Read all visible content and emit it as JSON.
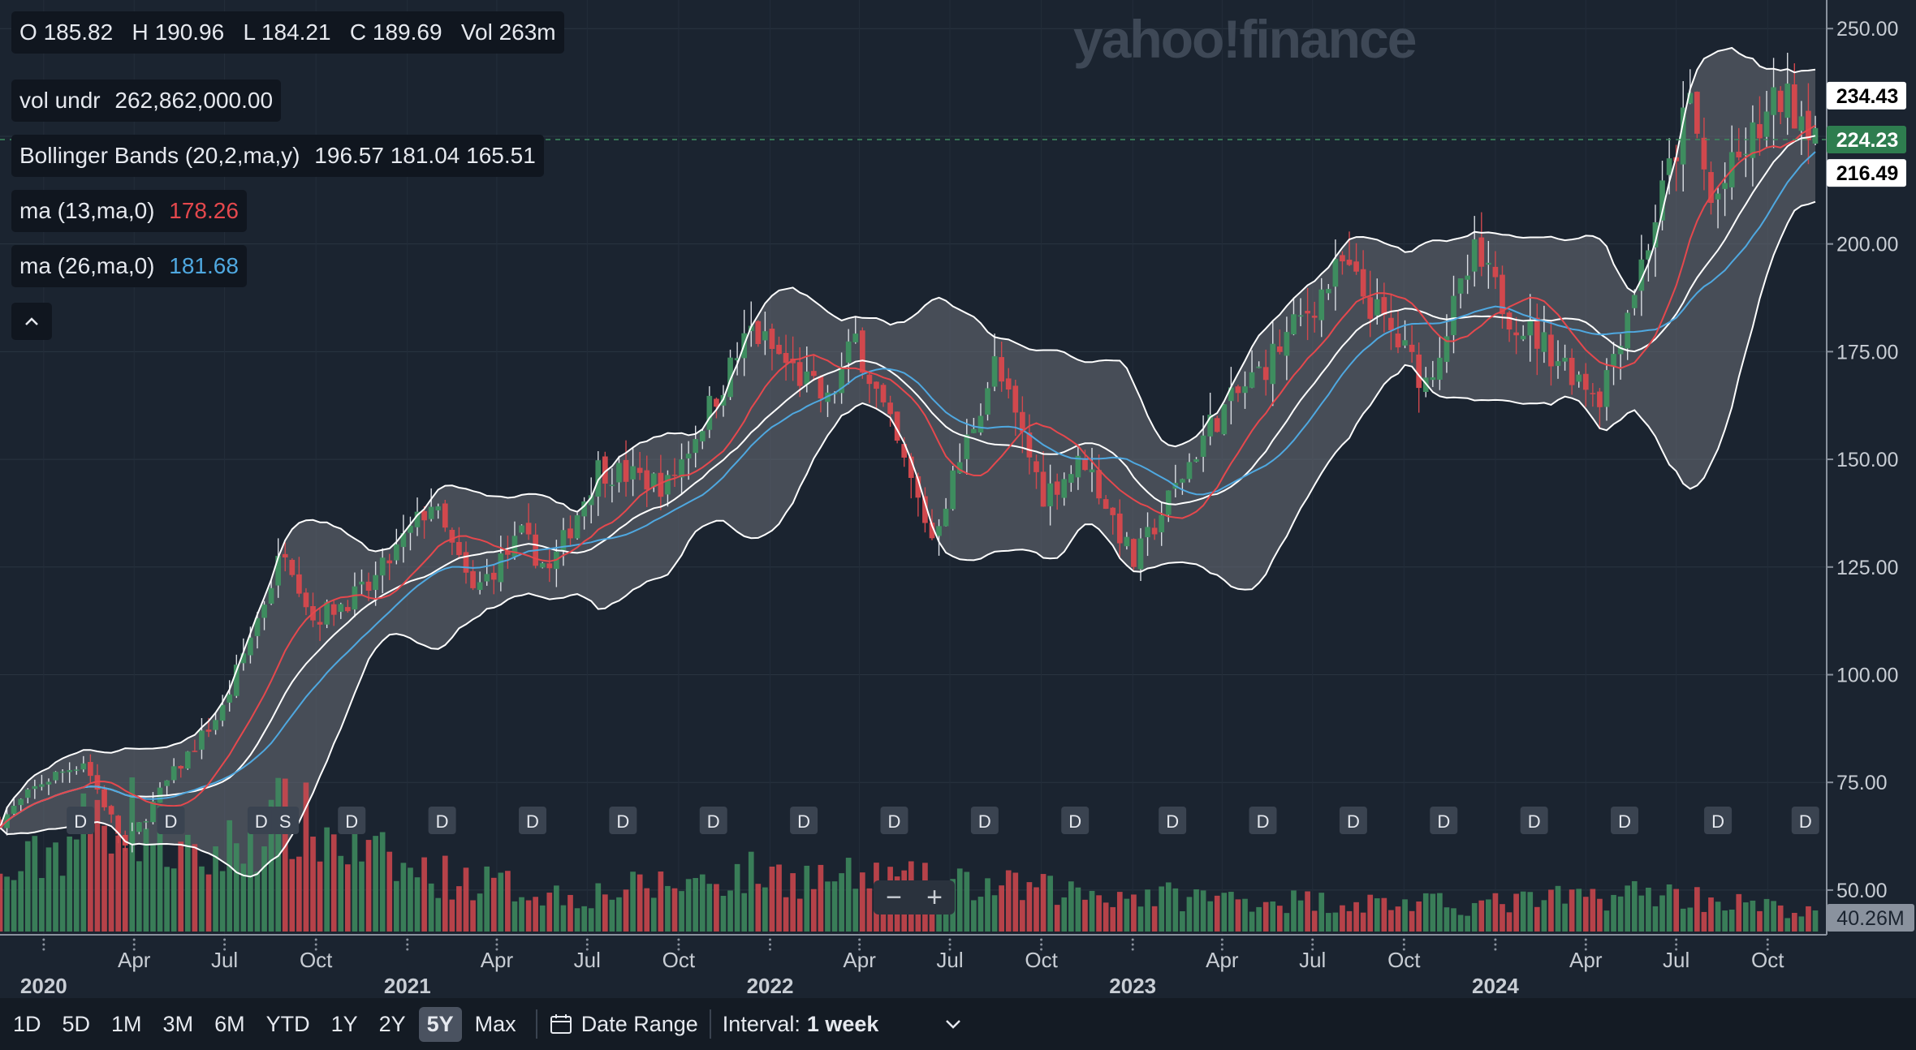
{
  "watermark": "yahoo!finance",
  "ohlc_legend": {
    "o_label": "O",
    "o": "185.82",
    "h_label": "H",
    "h": "190.96",
    "l_label": "L",
    "l": "184.21",
    "c_label": "C",
    "c": "189.69",
    "vol_label": "Vol",
    "vol": "263m"
  },
  "vol_legend": {
    "label": "vol undr",
    "value": "262,862,000.00"
  },
  "bb_legend": {
    "label": "Bollinger Bands (20,2,ma,y)",
    "upper": "196.57",
    "middle": "181.04",
    "lower": "165.51"
  },
  "ma13_legend": {
    "label": "ma (13,ma,0)",
    "value": "178.26",
    "color": "#e5484d"
  },
  "ma26_legend": {
    "label": "ma (26,ma,0)",
    "value": "181.68",
    "color": "#4fa8e0"
  },
  "price_tags": [
    {
      "value": 234.43,
      "text": "234.43",
      "bg": "#ffffff",
      "fg": "#000000"
    },
    {
      "value": 224.23,
      "text": "224.23",
      "bg": "#2e7d4f",
      "fg": "#ffffff"
    },
    {
      "value": 216.49,
      "text": "216.49",
      "bg": "#ffffff",
      "fg": "#000000"
    }
  ],
  "volume_tag": "40.26M",
  "toolbar": {
    "ranges": [
      "1D",
      "5D",
      "1M",
      "3M",
      "6M",
      "YTD",
      "1Y",
      "2Y",
      "5Y",
      "Max"
    ],
    "active_range": "5Y",
    "date_range_label": "Date Range",
    "interval_label": "Interval:",
    "interval_value": "1 week"
  },
  "zoom": {
    "minus": "−",
    "plus": "+"
  },
  "dividend_marker_label": "D",
  "split_marker_label": "S",
  "chart_data": {
    "type": "candlestick",
    "interval": "1 week",
    "period": "5Y",
    "x_range": [
      "2019-11-18",
      "2024-11-18"
    ],
    "ylim": [
      40,
      254
    ],
    "y_ticks": [
      50,
      75,
      100,
      125,
      150,
      175,
      200,
      225,
      250
    ],
    "y_tick_labels": [
      "50.00",
      "75.00",
      "100.00",
      "125.00",
      "150.00",
      "175.00",
      "200.00",
      "",
      "250.00"
    ],
    "x_tick_labels": [
      {
        "date": "2020-01-01",
        "label": "2020",
        "major": true
      },
      {
        "date": "2020-04-01",
        "label": "Apr"
      },
      {
        "date": "2020-07-01",
        "label": "Jul"
      },
      {
        "date": "2020-10-01",
        "label": "Oct"
      },
      {
        "date": "2021-01-01",
        "label": "2021",
        "major": true
      },
      {
        "date": "2021-04-01",
        "label": "Apr"
      },
      {
        "date": "2021-07-01",
        "label": "Jul"
      },
      {
        "date": "2021-10-01",
        "label": "Oct"
      },
      {
        "date": "2022-01-01",
        "label": "2022",
        "major": true
      },
      {
        "date": "2022-04-01",
        "label": "Apr"
      },
      {
        "date": "2022-07-01",
        "label": "Jul"
      },
      {
        "date": "2022-10-01",
        "label": "Oct"
      },
      {
        "date": "2023-01-01",
        "label": "2023",
        "major": true
      },
      {
        "date": "2023-04-01",
        "label": "Apr"
      },
      {
        "date": "2023-07-01",
        "label": "Jul"
      },
      {
        "date": "2023-10-01",
        "label": "Oct"
      },
      {
        "date": "2024-01-01",
        "label": "2024",
        "major": true
      },
      {
        "date": "2024-04-01",
        "label": "Apr"
      },
      {
        "date": "2024-07-01",
        "label": "Jul"
      },
      {
        "date": "2024-10-01",
        "label": "Oct"
      }
    ],
    "close_anchors": [
      [
        "2019-11-18",
        66
      ],
      [
        "2019-12-30",
        75
      ],
      [
        "2020-02-10",
        80
      ],
      [
        "2020-03-23",
        60
      ],
      [
        "2020-05-04",
        75
      ],
      [
        "2020-06-29",
        92
      ],
      [
        "2020-08-31",
        130
      ],
      [
        "2020-09-28",
        113
      ],
      [
        "2020-11-23",
        120
      ],
      [
        "2021-01-25",
        140
      ],
      [
        "2021-03-08",
        119
      ],
      [
        "2021-04-26",
        132
      ],
      [
        "2021-05-24",
        124
      ],
      [
        "2021-07-12",
        148
      ],
      [
        "2021-09-20",
        144
      ],
      [
        "2021-12-13",
        180
      ],
      [
        "2022-02-28",
        163
      ],
      [
        "2022-03-28",
        178
      ],
      [
        "2022-06-13",
        132
      ],
      [
        "2022-08-15",
        172
      ],
      [
        "2022-10-03",
        142
      ],
      [
        "2022-11-14",
        150
      ],
      [
        "2023-01-02",
        126
      ],
      [
        "2023-03-20",
        158
      ],
      [
        "2023-05-15",
        172
      ],
      [
        "2023-07-31",
        195
      ],
      [
        "2023-10-23",
        168
      ],
      [
        "2023-12-11",
        197
      ],
      [
        "2024-01-15",
        184
      ],
      [
        "2024-04-15",
        165
      ],
      [
        "2024-05-20",
        190
      ],
      [
        "2024-07-15",
        233
      ],
      [
        "2024-08-05",
        209
      ],
      [
        "2024-09-09",
        222
      ],
      [
        "2024-10-14",
        234
      ],
      [
        "2024-11-18",
        228
      ]
    ],
    "volume_anchors": [
      [
        "2019-11-18",
        110
      ],
      [
        "2020-03-16",
        285
      ],
      [
        "2020-06-01",
        150
      ],
      [
        "2020-08-31",
        260
      ],
      [
        "2020-12-28",
        140
      ],
      [
        "2021-06-14",
        80
      ],
      [
        "2021-12-13",
        130
      ],
      [
        "2022-06-13",
        110
      ],
      [
        "2022-12-12",
        85
      ],
      [
        "2023-06-12",
        70
      ],
      [
        "2023-12-11",
        60
      ],
      [
        "2024-06-10",
        90
      ],
      [
        "2024-11-18",
        40
      ]
    ],
    "volume_scale_max": 350,
    "latest_volume": "40.26M",
    "indicators": [
      "Bollinger Bands (20,2)",
      "ma 13",
      "ma 26"
    ],
    "band_fill": "#6b7079",
    "up_color": "#3e8d5f",
    "down_color": "#d1484d",
    "ma13_color": "#e5484d",
    "ma26_color": "#4fa8e0",
    "bb_color": "#ffffff",
    "current_price": 224.23,
    "dividend_dates": [
      "2020-02-07",
      "2020-05-08",
      "2020-08-07",
      "2020-11-06",
      "2021-02-05",
      "2021-05-07",
      "2021-08-06",
      "2021-11-05",
      "2022-02-04",
      "2022-05-06",
      "2022-08-05",
      "2022-11-04",
      "2023-02-10",
      "2023-05-12",
      "2023-08-11",
      "2023-11-10",
      "2024-02-09",
      "2024-05-10",
      "2024-08-12",
      "2024-11-08"
    ],
    "split_dates": [
      "2020-08-31"
    ]
  }
}
